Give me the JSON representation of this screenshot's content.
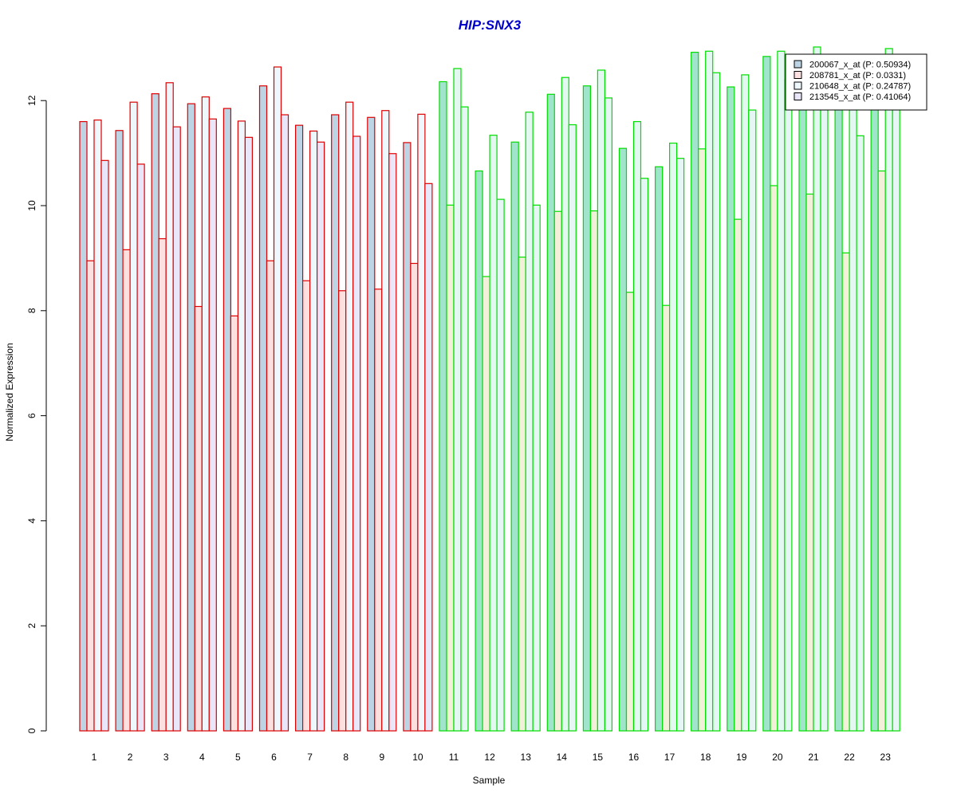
{
  "chart_data": {
    "type": "bar",
    "title": "HIP:SNX3",
    "xlabel": "Sample",
    "ylabel": "Normalized Expression",
    "ylim": [
      0,
      13
    ],
    "yticks": [
      0,
      2,
      4,
      6,
      8,
      10,
      12
    ],
    "grid": false,
    "legend_position": "top-right",
    "categories": [
      "1",
      "2",
      "3",
      "4",
      "5",
      "6",
      "7",
      "8",
      "9",
      "10",
      "11",
      "12",
      "13",
      "14",
      "15",
      "16",
      "17",
      "18",
      "19",
      "20",
      "21",
      "22",
      "23"
    ],
    "group_border_colors": [
      "#dd0000",
      "#dd0000",
      "#dd0000",
      "#dd0000",
      "#dd0000",
      "#dd0000",
      "#dd0000",
      "#dd0000",
      "#dd0000",
      "#dd0000",
      "#00dd00",
      "#00dd00",
      "#00dd00",
      "#00dd00",
      "#00dd00",
      "#00dd00",
      "#00dd00",
      "#00dd00",
      "#00dd00",
      "#00dd00",
      "#00dd00",
      "#00dd00",
      "#00dd00"
    ],
    "series": [
      {
        "name": "200067_x_at (P: 0.50934)",
        "fill_group1": "#bcd4e4",
        "fill_group2": "#a0e4cc",
        "values": [
          11.6,
          11.43,
          12.13,
          11.94,
          11.85,
          12.28,
          11.53,
          11.73,
          11.68,
          11.2,
          12.36,
          10.66,
          11.21,
          12.12,
          12.28,
          11.09,
          10.74,
          12.92,
          12.26,
          12.84,
          12.5,
          12.3,
          12.7
        ]
      },
      {
        "name": "208781_x_at (P: 0.0331)",
        "fill_group1": "#fce0e0",
        "fill_group2": "#f2f0d8",
        "values": [
          8.95,
          9.16,
          9.37,
          8.08,
          7.9,
          8.95,
          8.57,
          8.38,
          8.41,
          8.9,
          10.01,
          8.65,
          9.02,
          9.89,
          9.9,
          8.35,
          8.1,
          11.08,
          9.74,
          10.38,
          10.22,
          9.1,
          10.66
        ]
      },
      {
        "name": "210648_x_at (P: 0.24787)",
        "fill_group1": "#eef8fc",
        "fill_group2": "#e2f8f0",
        "values": [
          11.63,
          11.97,
          12.34,
          12.07,
          11.61,
          12.64,
          11.42,
          11.97,
          11.81,
          11.74,
          12.61,
          11.34,
          11.78,
          12.44,
          12.58,
          11.6,
          11.19,
          12.94,
          12.49,
          12.94,
          13.02,
          12.5,
          12.99
        ]
      },
      {
        "name": "213545_x_at (P: 0.41064)",
        "fill_group1": "#eae6fa",
        "fill_group2": "#e6f6f4",
        "values": [
          10.86,
          10.79,
          11.5,
          11.65,
          11.3,
          11.73,
          11.21,
          11.32,
          10.99,
          10.42,
          11.88,
          10.12,
          10.01,
          11.54,
          12.05,
          10.52,
          10.9,
          12.53,
          11.82,
          12.4,
          12.3,
          11.33,
          12.4
        ]
      }
    ],
    "legend_swatch_colors": [
      "#bcd4e4",
      "#fce0e0",
      "#eef8fc",
      "#eae6fa"
    ]
  }
}
